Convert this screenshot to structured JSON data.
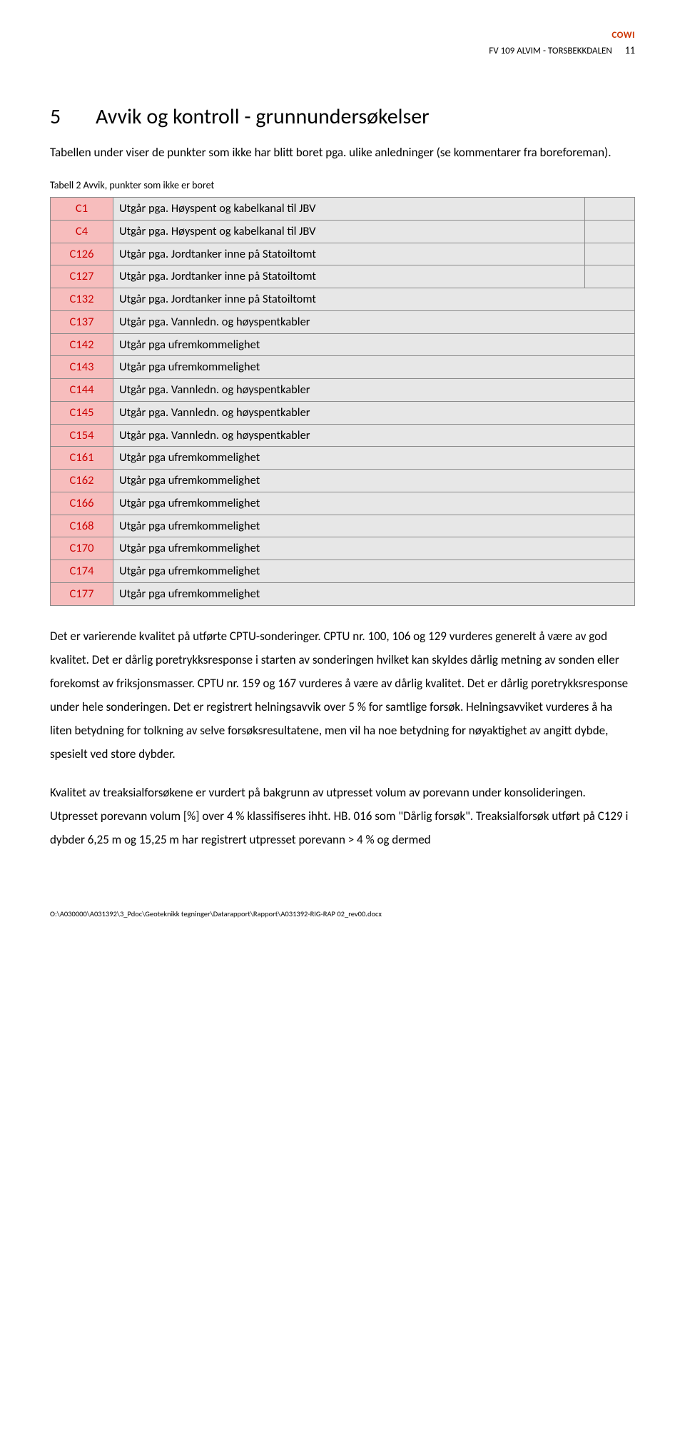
{
  "header": {
    "title": "FV 109 ALVIM - TORSBEKKDALEN",
    "logo": "COWI",
    "page_number": "11"
  },
  "section": {
    "number": "5",
    "title": "Avvik og kontroll - grunnundersøkelser"
  },
  "intro": "Tabellen under viser de punkter som ikke har blitt boret pga. ulike anledninger (se kommentarer fra boreforeman).",
  "table_caption": "Tabell 2 Avvik, punkter som ikke er boret",
  "rows": [
    {
      "code": "C1",
      "desc": "Utgår pga. Høyspent og kabelkanal til JBV",
      "blank": true
    },
    {
      "code": "C4",
      "desc": "Utgår pga. Høyspent og kabelkanal til JBV",
      "blank": true
    },
    {
      "code": "C126",
      "desc": "Utgår pga. Jordtanker inne på Statoiltomt",
      "blank": true
    },
    {
      "code": "C127",
      "desc": "Utgår pga. Jordtanker inne på Statoiltomt",
      "blank": true
    },
    {
      "code": "C132",
      "desc": "Utgår pga. Jordtanker inne på Statoiltomt",
      "blank": false
    },
    {
      "code": "C137",
      "desc": "Utgår pga. Vannledn. og høyspentkabler",
      "blank": false
    },
    {
      "code": "C142",
      "desc": "Utgår pga ufremkommelighet",
      "blank": false
    },
    {
      "code": "C143",
      "desc": "Utgår pga ufremkommelighet",
      "blank": false
    },
    {
      "code": "C144",
      "desc": "Utgår pga. Vannledn. og høyspentkabler",
      "blank": false
    },
    {
      "code": "C145",
      "desc": "Utgår pga. Vannledn. og høyspentkabler",
      "blank": false
    },
    {
      "code": "C154",
      "desc": "Utgår pga. Vannledn. og høyspentkabler",
      "blank": false
    },
    {
      "code": "C161",
      "desc": "Utgår pga ufremkommelighet",
      "blank": false
    },
    {
      "code": "C162",
      "desc": "Utgår pga ufremkommelighet",
      "blank": false
    },
    {
      "code": "C166",
      "desc": "Utgår pga ufremkommelighet",
      "blank": false
    },
    {
      "code": "C168",
      "desc": "Utgår pga ufremkommelighet",
      "blank": false
    },
    {
      "code": "C170",
      "desc": "Utgår pga ufremkommelighet",
      "blank": false
    },
    {
      "code": "C174",
      "desc": "Utgår pga ufremkommelighet",
      "blank": false
    },
    {
      "code": "C177",
      "desc": "Utgår pga ufremkommelighet",
      "blank": false
    }
  ],
  "para1": "Det er varierende kvalitet på utførte CPTU-sonderinger. CPTU  nr. 100, 106 og 129 vurderes generelt å være av god kvalitet. Det er dårlig poretrykksresponse i starten av sonderingen hvilket kan skyldes dårlig metning av sonden eller forekomst av friksjonsmasser. CPTU nr. 159 og 167 vurderes å være av dårlig kvalitet. Det er dårlig poretrykksresponse under hele sonderingen. Det er registrert helningsavvik over 5 % for samtlige forsøk. Helningsavviket vurderes å ha liten betydning for tolkning av selve forsøksresultatene, men vil ha noe betydning for nøyaktighet av angitt dybde, spesielt ved store dybder.",
  "para2": "Kvalitet av treaksialforsøkene er vurdert på bakgrunn av utpresset volum av porevann under konsolideringen. Utpresset porevann volum [%] over 4 % klassifiseres ihht. HB. 016 som \"Dårlig forsøk\". Treaksialforsøk utført på C129 i dybder 6,25 m og 15,25 m har registrert utpresset porevann > 4 % og dermed",
  "footer": "O:\\A030000\\A031392\\3_Pdoc\\Geoteknikk tegninger\\Datarapport\\Rapport\\A031392-RIG-RAP 02_rev00.docx",
  "colors": {
    "code_bg": "#f7bdbd",
    "code_text": "#cc0000",
    "desc_bg": "#e7e7e7",
    "border": "#8a8a8a",
    "logo": "#cc3300"
  }
}
